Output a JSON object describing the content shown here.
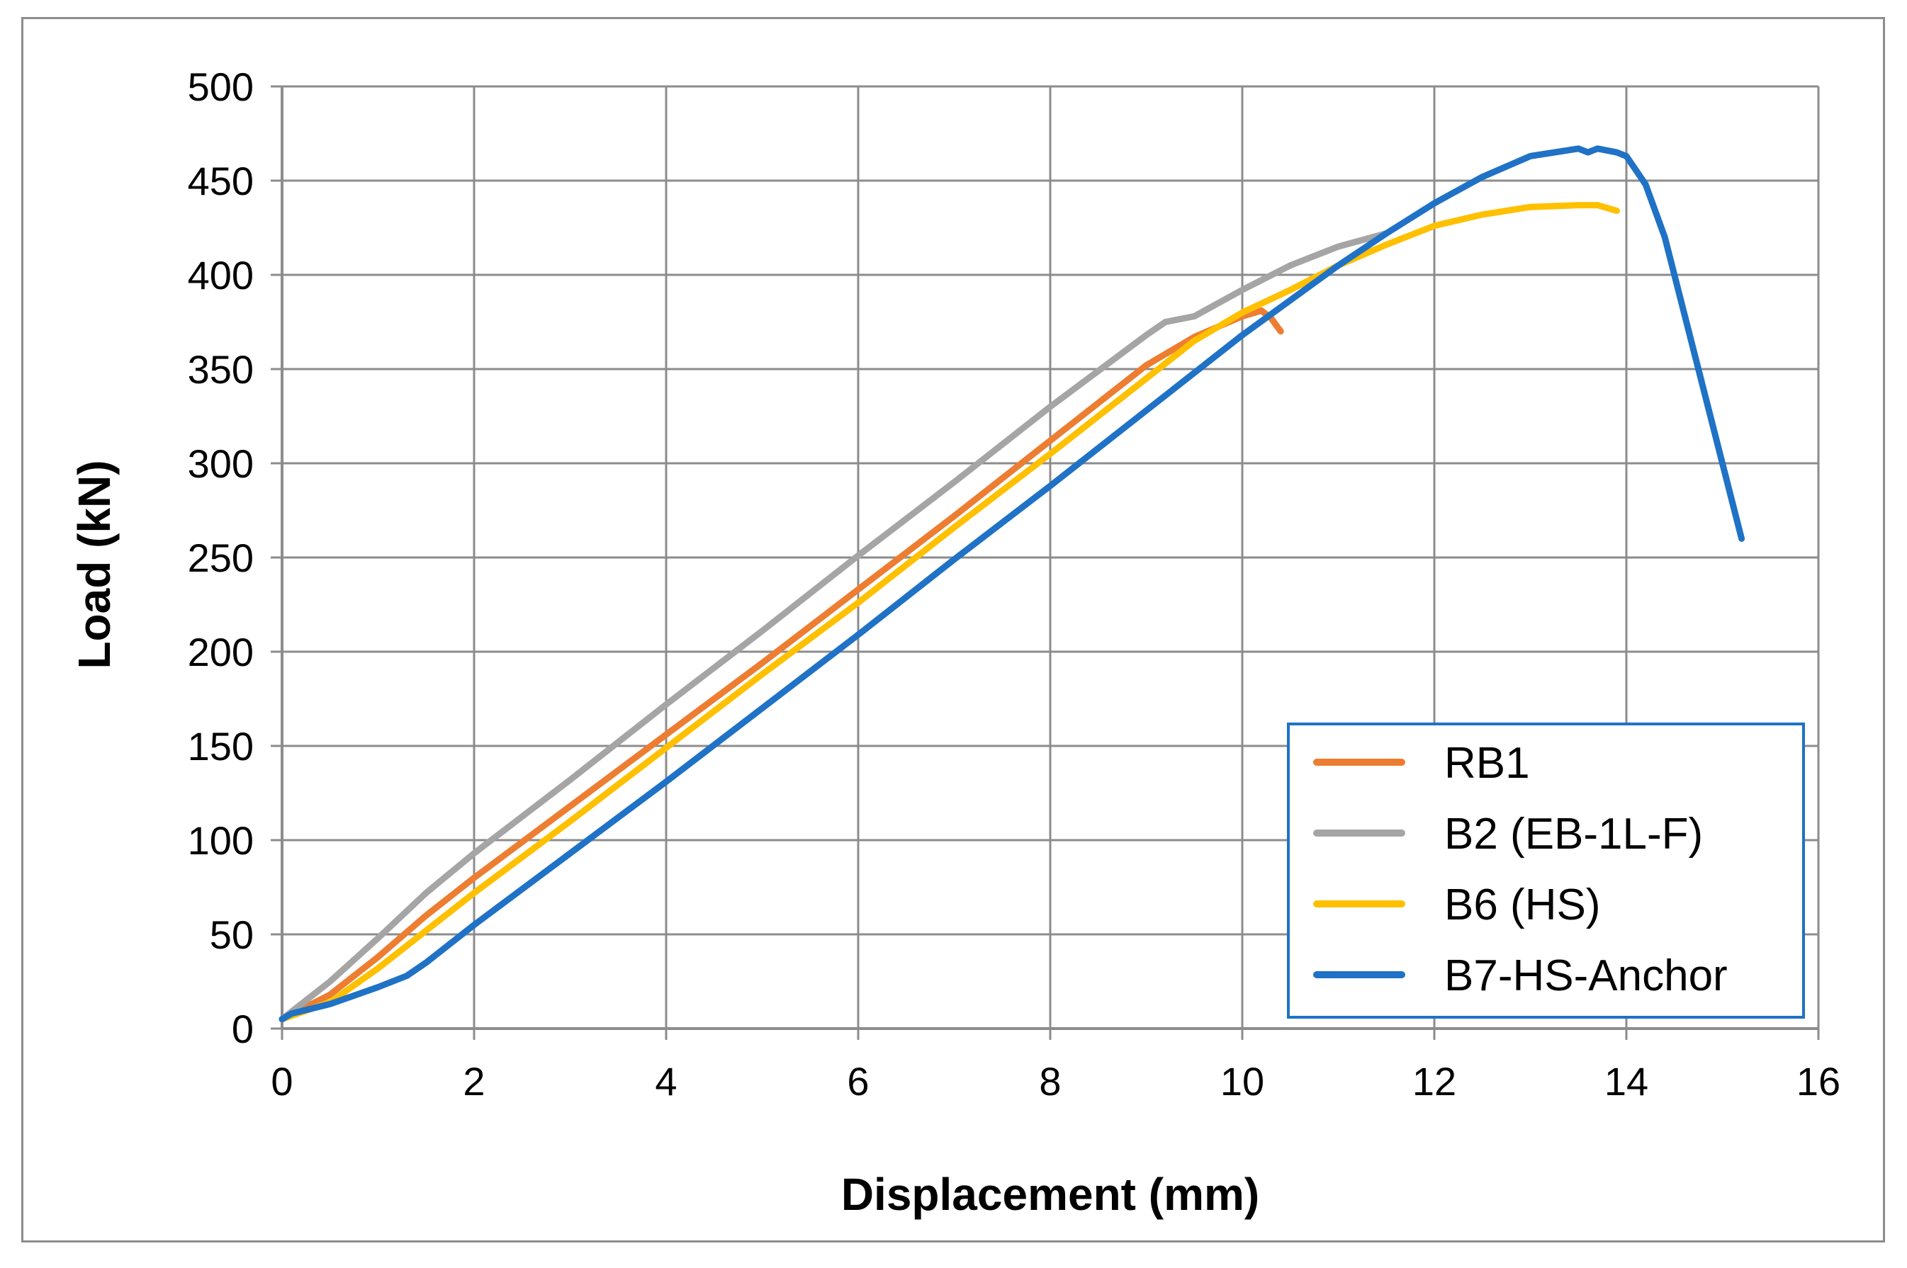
{
  "chart_data": {
    "type": "line",
    "xlabel": "Displacement (mm)",
    "ylabel": "Load (kN)",
    "xlim": [
      0,
      16
    ],
    "ylim": [
      0,
      500
    ],
    "x_ticks": [
      "0",
      "2",
      "4",
      "6",
      "8",
      "10",
      "12",
      "14",
      "16"
    ],
    "y_ticks": [
      "0",
      "50",
      "100",
      "150",
      "200",
      "250",
      "300",
      "350",
      "400",
      "450",
      "500"
    ],
    "grid": true,
    "legend_position": "bottom-right",
    "series": [
      {
        "name": "RB1",
        "color": "#ED7D31",
        "points": [
          [
            0,
            5
          ],
          [
            0.5,
            18
          ],
          [
            1,
            38
          ],
          [
            1.5,
            60
          ],
          [
            2,
            80
          ],
          [
            3,
            118
          ],
          [
            4,
            156
          ],
          [
            5,
            194
          ],
          [
            6,
            233
          ],
          [
            7,
            272
          ],
          [
            8,
            312
          ],
          [
            9,
            352
          ],
          [
            9.5,
            367
          ],
          [
            10,
            378
          ],
          [
            10.2,
            381
          ],
          [
            10.3,
            377
          ],
          [
            10.4,
            370
          ]
        ]
      },
      {
        "name": "B2 (EB-1L-F)",
        "color": "#A5A5A5",
        "points": [
          [
            0,
            5
          ],
          [
            0.5,
            25
          ],
          [
            1,
            48
          ],
          [
            1.5,
            72
          ],
          [
            2,
            93
          ],
          [
            3,
            132
          ],
          [
            4,
            172
          ],
          [
            5,
            211
          ],
          [
            6,
            251
          ],
          [
            7,
            290
          ],
          [
            8,
            330
          ],
          [
            9,
            368
          ],
          [
            9.2,
            375
          ],
          [
            9.5,
            378
          ],
          [
            10,
            392
          ],
          [
            10.5,
            405
          ],
          [
            11,
            415
          ],
          [
            11.5,
            422
          ]
        ]
      },
      {
        "name": "B6 (HS)",
        "color": "#FFC000",
        "points": [
          [
            0,
            5
          ],
          [
            0.5,
            14
          ],
          [
            1,
            32
          ],
          [
            1.5,
            52
          ],
          [
            2,
            72
          ],
          [
            3,
            110
          ],
          [
            4,
            149
          ],
          [
            5,
            188
          ],
          [
            6,
            226
          ],
          [
            7,
            266
          ],
          [
            8,
            305
          ],
          [
            9,
            345
          ],
          [
            9.5,
            365
          ],
          [
            10,
            380
          ],
          [
            10.5,
            392
          ],
          [
            11,
            405
          ],
          [
            11.5,
            416
          ],
          [
            12,
            426
          ],
          [
            12.5,
            432
          ],
          [
            13,
            436
          ],
          [
            13.5,
            437
          ],
          [
            13.7,
            437
          ],
          [
            13.9,
            434
          ]
        ]
      },
      {
        "name": "B7-HS-Anchor",
        "color": "#1F72C6",
        "points": [
          [
            0,
            5
          ],
          [
            0.1,
            8
          ],
          [
            0.5,
            13
          ],
          [
            1,
            22
          ],
          [
            1.3,
            28
          ],
          [
            1.5,
            35
          ],
          [
            2,
            55
          ],
          [
            3,
            93
          ],
          [
            4,
            131
          ],
          [
            5,
            170
          ],
          [
            6,
            209
          ],
          [
            7,
            249
          ],
          [
            8,
            288
          ],
          [
            9,
            328
          ],
          [
            10,
            368
          ],
          [
            11,
            405
          ],
          [
            11.5,
            422
          ],
          [
            12,
            438
          ],
          [
            12.5,
            452
          ],
          [
            13,
            463
          ],
          [
            13.5,
            467
          ],
          [
            13.6,
            465
          ],
          [
            13.7,
            467
          ],
          [
            13.9,
            465
          ],
          [
            14,
            463
          ],
          [
            14.2,
            448
          ],
          [
            14.4,
            420
          ],
          [
            14.6,
            380
          ],
          [
            14.8,
            340
          ],
          [
            15,
            300
          ],
          [
            15.2,
            260
          ]
        ]
      }
    ]
  }
}
